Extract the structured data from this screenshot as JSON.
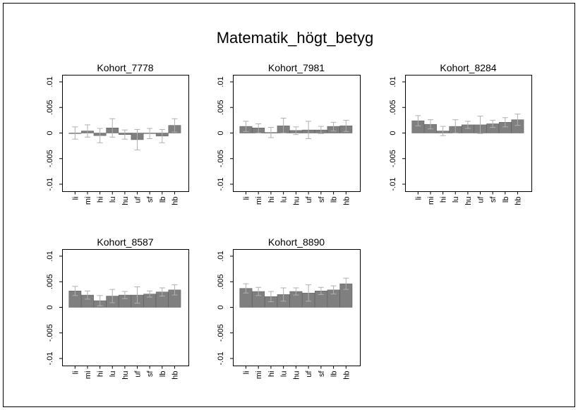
{
  "figure_title": "Matematik_högt_betyg",
  "chart_data": [
    {
      "type": "bar",
      "title": "Kohort_7778",
      "categories": [
        "li",
        "mi",
        "hi",
        "lu",
        "hu",
        "uf",
        "sf",
        "lb",
        "hb"
      ],
      "values": [
        0,
        0.0004,
        -0.0005,
        0.001,
        -0.0003,
        -0.0013,
        -0.0001,
        -0.0006,
        0.0015
      ],
      "error_low": [
        -0.0012,
        -0.0008,
        -0.0019,
        -0.0008,
        -0.0012,
        -0.0033,
        -0.0011,
        -0.0019,
        0.0002
      ],
      "error_high": [
        0.0012,
        0.0016,
        0.0009,
        0.0028,
        0.0006,
        0.0007,
        0.0009,
        0.0007,
        0.0028
      ],
      "ylim": [
        -0.01,
        0.01
      ],
      "yticks": [
        "-.01",
        "-.005",
        "0",
        ".005",
        ".01"
      ],
      "ytick_values": [
        -0.01,
        -0.005,
        0,
        0.005,
        0.01
      ],
      "grid": false
    },
    {
      "type": "bar",
      "title": "Kohort_7981",
      "categories": [
        "li",
        "mi",
        "hi",
        "lu",
        "hu",
        "uf",
        "sf",
        "lb",
        "hb"
      ],
      "values": [
        0.0013,
        0.001,
        0.0001,
        0.0014,
        0.0005,
        0.0006,
        0.0006,
        0.0013,
        0.0014
      ],
      "error_low": [
        0.0003,
        0.0,
        -0.0009,
        0.0,
        -0.0003,
        -0.0011,
        -0.0001,
        0.0004,
        0.0003
      ],
      "error_high": [
        0.0023,
        0.0018,
        0.0011,
        0.0029,
        0.0012,
        0.0023,
        0.0013,
        0.0021,
        0.0025
      ],
      "ylim": [
        -0.01,
        0.01
      ],
      "yticks": [
        "-.01",
        "-.005",
        "0",
        ".005",
        ".01"
      ],
      "ytick_values": [
        -0.01,
        -0.005,
        0,
        0.005,
        0.01
      ],
      "grid": false
    },
    {
      "type": "bar",
      "title": "Kohort_8284",
      "categories": [
        "li",
        "mi",
        "hi",
        "lu",
        "hu",
        "uf",
        "sf",
        "lb",
        "hb"
      ],
      "values": [
        0.0024,
        0.0017,
        0.0004,
        0.0013,
        0.0016,
        0.0016,
        0.0018,
        0.0021,
        0.0026
      ],
      "error_low": [
        0.0014,
        0.0008,
        -0.0005,
        0.0,
        0.0009,
        -0.0001,
        0.0011,
        0.0012,
        0.0015
      ],
      "error_high": [
        0.0034,
        0.0026,
        0.0013,
        0.0026,
        0.0023,
        0.0033,
        0.0025,
        0.003,
        0.0037
      ],
      "ylim": [
        -0.01,
        0.01
      ],
      "yticks": [
        "-.01",
        "-.005",
        "0",
        ".005",
        ".01"
      ],
      "ytick_values": [
        -0.01,
        -0.005,
        0,
        0.005,
        0.01
      ],
      "grid": false
    },
    {
      "type": "bar",
      "title": "Kohort_8587",
      "categories": [
        "li",
        "mi",
        "hi",
        "lu",
        "hu",
        "uf",
        "sf",
        "lb",
        "hb"
      ],
      "values": [
        0.0032,
        0.0024,
        0.0013,
        0.0022,
        0.0024,
        0.0024,
        0.0026,
        0.003,
        0.0034
      ],
      "error_low": [
        0.0023,
        0.0016,
        0.0003,
        0.0009,
        0.0017,
        0.0008,
        0.002,
        0.0022,
        0.0024
      ],
      "error_high": [
        0.0041,
        0.0032,
        0.0023,
        0.0035,
        0.0031,
        0.004,
        0.0032,
        0.0038,
        0.0044
      ],
      "ylim": [
        -0.01,
        0.01
      ],
      "yticks": [
        "-.01",
        "-.005",
        "0",
        ".005",
        ".01"
      ],
      "ytick_values": [
        -0.01,
        -0.005,
        0,
        0.005,
        0.01
      ],
      "grid": false
    },
    {
      "type": "bar",
      "title": "Kohort_8890",
      "categories": [
        "li",
        "mi",
        "hi",
        "lu",
        "hu",
        "uf",
        "sf",
        "lb",
        "hb"
      ],
      "values": [
        0.0037,
        0.0031,
        0.0021,
        0.0025,
        0.0031,
        0.0028,
        0.0032,
        0.0034,
        0.0046
      ],
      "error_low": [
        0.0028,
        0.0023,
        0.0011,
        0.0012,
        0.0024,
        0.0012,
        0.0025,
        0.0026,
        0.0035
      ],
      "error_high": [
        0.0046,
        0.0039,
        0.0031,
        0.0038,
        0.0038,
        0.0044,
        0.0039,
        0.0042,
        0.0057
      ],
      "ylim": [
        -0.01,
        0.01
      ],
      "yticks": [
        "-.01",
        "-.005",
        "0",
        ".005",
        ".01"
      ],
      "ytick_values": [
        -0.01,
        -0.005,
        0,
        0.005,
        0.01
      ],
      "grid": false
    }
  ]
}
